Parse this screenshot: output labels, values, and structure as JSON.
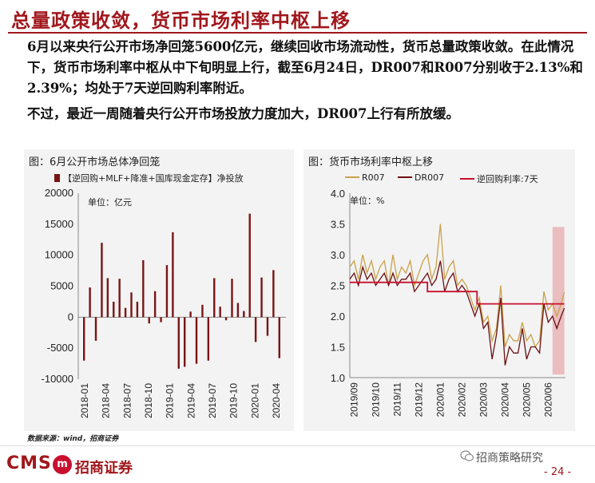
{
  "heading": "总量政策收敛，货币市场利率中枢上移",
  "paragraph1": "6月以来央行公开市场净回笼5600亿元，继续回收市场流动性，货币总量政策收敛。在此情况下，货币市场利率中枢从中下旬明显上行，截至6月24日，DR007和R007分别收于2.13%和2.39%；均处于7天逆回购利率附近。",
  "paragraph2": "不过，最近一周随着央行公开市场投放力度加大，DR007上行有所放缓。",
  "left_panel": {
    "title": "图：6月公开市场总体净回笼",
    "legend": "【逆回购+MLF+降准+国库现金定存】净投放",
    "unit": "单位：亿元"
  },
  "right_panel": {
    "title": "图：货币市场利率中枢上移",
    "legend_r007": "R007",
    "legend_dr007": "DR007",
    "legend_reverse": "逆回购利率:7天",
    "unit": "单位：%"
  },
  "chart_data": [
    {
      "type": "bar",
      "title": "6月公开市场总体净回笼",
      "series": [
        {
          "name": "【逆回购+MLF+降准+国库现金定存】净投放",
          "color": "#7b1416",
          "values": [
            -7000,
            4800,
            -3800,
            12000,
            6300,
            2500,
            6200,
            1500,
            4000,
            2500,
            9200,
            -1000,
            4200,
            -800,
            8400,
            13700,
            -8300,
            -8000,
            900,
            -7500,
            2000,
            -7000,
            6300,
            1700,
            -500,
            6200,
            2300,
            1000,
            16700,
            -4000,
            6400,
            -3000,
            7600,
            -6600
          ]
        }
      ],
      "xticks": [
        "2018-01",
        "2018-04",
        "2018-07",
        "2018-10",
        "2019-01",
        "2019-04",
        "2019-07",
        "2019-10",
        "2020-01",
        "2020-04"
      ],
      "yticks": [
        "20000",
        "15000",
        "10000",
        "5000",
        "0",
        "-5000",
        "-10000"
      ],
      "ylim": [
        -10000,
        20000
      ]
    },
    {
      "type": "line",
      "title": "货币市场利率中枢上移",
      "xticks": [
        "2019/09",
        "2019/10",
        "2019/11",
        "2019/12",
        "2020/01",
        "2020/02",
        "2020/03",
        "2020/04",
        "2020/05",
        "2020/06"
      ],
      "yticks": [
        "4.0",
        "3.5",
        "3.0",
        "2.5",
        "2.0",
        "1.5",
        "1.0"
      ],
      "ylim": [
        1.0,
        4.0
      ],
      "x_range": [
        0,
        10
      ],
      "highlight_band": {
        "x_from": 9.4,
        "x_to": 9.95,
        "color": "#e7b3b5"
      },
      "series": [
        {
          "name": "R007",
          "color": "#c9a24a",
          "x": [
            0,
            0.2,
            0.4,
            0.6,
            0.8,
            1.0,
            1.2,
            1.4,
            1.6,
            1.8,
            2.0,
            2.2,
            2.4,
            2.6,
            2.8,
            3.0,
            3.2,
            3.4,
            3.6,
            3.8,
            4.0,
            4.2,
            4.4,
            4.6,
            4.8,
            5.0,
            5.2,
            5.4,
            5.6,
            5.8,
            6.0,
            6.2,
            6.4,
            6.6,
            6.8,
            7.0,
            7.2,
            7.4,
            7.6,
            7.8,
            8.0,
            8.2,
            8.4,
            8.6,
            8.8,
            9.0,
            9.2,
            9.4,
            9.6,
            9.8,
            9.95
          ],
          "y": [
            2.8,
            2.9,
            2.6,
            3.0,
            2.7,
            2.9,
            2.6,
            2.8,
            2.9,
            2.5,
            3.0,
            2.6,
            2.8,
            2.7,
            2.9,
            2.5,
            2.7,
            2.9,
            3.0,
            2.6,
            2.8,
            3.5,
            2.6,
            2.8,
            2.9,
            2.5,
            2.6,
            2.5,
            2.3,
            2.1,
            2.3,
            1.9,
            2.0,
            1.6,
            1.8,
            2.5,
            1.5,
            1.7,
            1.6,
            1.6,
            1.9,
            1.6,
            1.7,
            1.5,
            1.6,
            2.4,
            2.1,
            2.2,
            2.0,
            2.2,
            2.39
          ]
        },
        {
          "name": "DR007",
          "color": "#6b0f12",
          "x": [
            0,
            0.2,
            0.4,
            0.6,
            0.8,
            1.0,
            1.2,
            1.4,
            1.6,
            1.8,
            2.0,
            2.2,
            2.4,
            2.6,
            2.8,
            3.0,
            3.2,
            3.4,
            3.6,
            3.8,
            4.0,
            4.2,
            4.4,
            4.6,
            4.8,
            5.0,
            5.2,
            5.4,
            5.6,
            5.8,
            6.0,
            6.2,
            6.4,
            6.6,
            6.8,
            7.0,
            7.2,
            7.4,
            7.6,
            7.8,
            8.0,
            8.2,
            8.4,
            8.6,
            8.8,
            9.0,
            9.2,
            9.4,
            9.6,
            9.8,
            9.95
          ],
          "y": [
            2.6,
            2.7,
            2.5,
            2.8,
            2.6,
            2.7,
            2.5,
            2.6,
            2.7,
            2.5,
            2.7,
            2.5,
            2.6,
            2.6,
            2.7,
            2.4,
            2.5,
            2.6,
            2.7,
            2.5,
            2.6,
            2.9,
            2.4,
            2.6,
            2.7,
            2.4,
            2.5,
            2.4,
            2.2,
            2.0,
            2.2,
            1.8,
            1.9,
            1.3,
            1.7,
            2.3,
            1.2,
            1.5,
            1.4,
            1.4,
            1.8,
            1.3,
            1.5,
            1.5,
            1.4,
            2.2,
            1.9,
            2.0,
            1.8,
            2.0,
            2.13
          ]
        },
        {
          "name": "逆回购利率:7天",
          "color": "#c8102e",
          "step": true,
          "x": [
            0,
            3.6,
            3.6,
            5.9,
            5.9,
            9.95
          ],
          "y": [
            2.55,
            2.55,
            2.4,
            2.4,
            2.2,
            2.2
          ]
        }
      ]
    }
  ],
  "source": "数据来源：wind，招商证券",
  "footer": {
    "cms": "CMS",
    "logo_mark": "m",
    "brand": "招商证券",
    "wechat": "招商策略研究",
    "page": "- 24 -"
  }
}
